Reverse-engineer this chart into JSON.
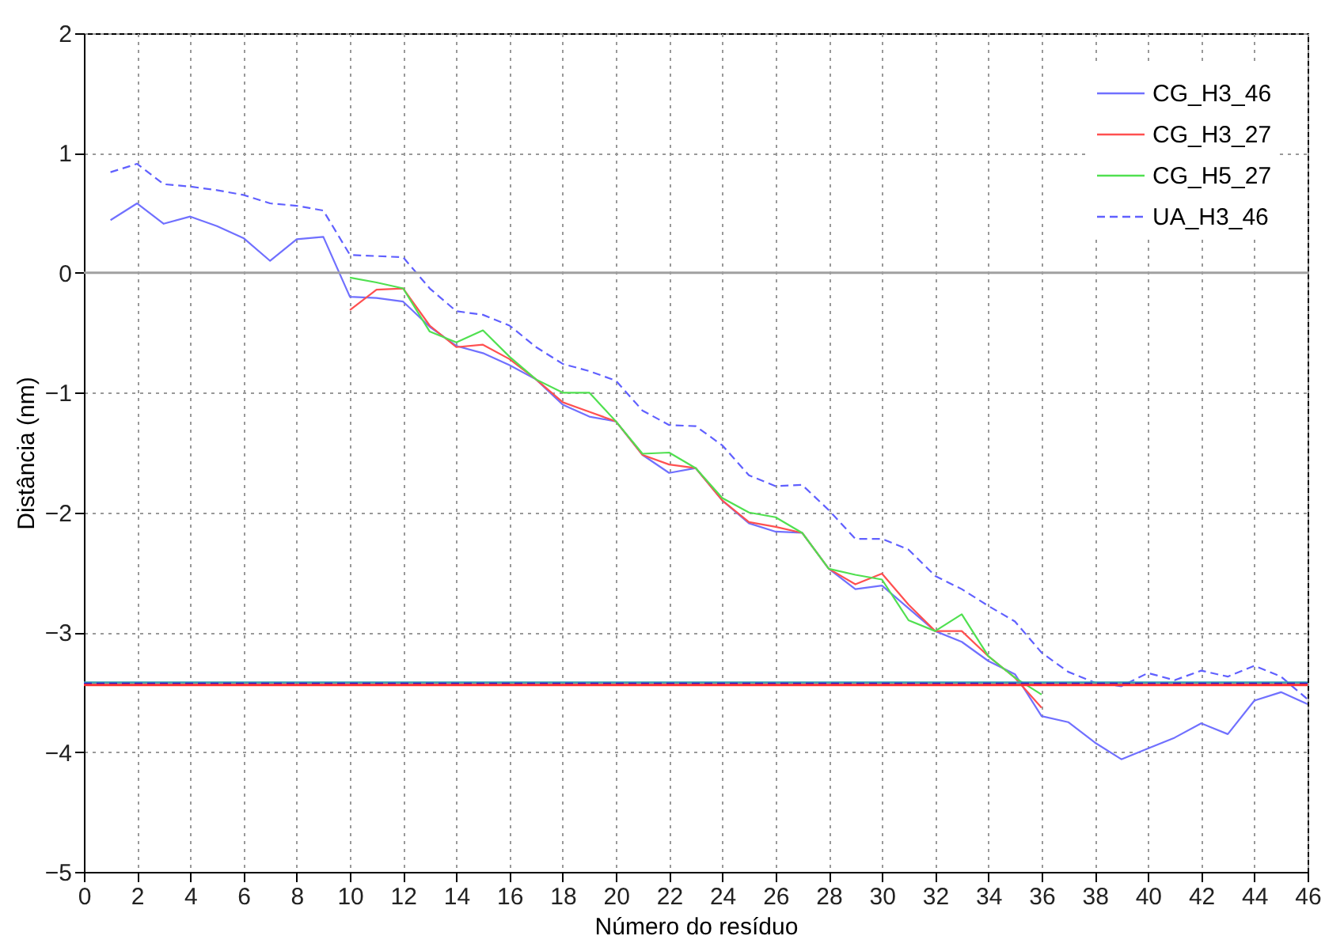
{
  "chart_data": {
    "type": "line",
    "xlabel": "Número do resíduo",
    "ylabel": "Distância (nm)",
    "xlim": [
      0,
      46
    ],
    "ylim": [
      -5,
      2
    ],
    "xticks": [
      0,
      2,
      4,
      6,
      8,
      10,
      12,
      14,
      16,
      18,
      20,
      22,
      24,
      26,
      28,
      30,
      32,
      34,
      36,
      38,
      40,
      42,
      44,
      46
    ],
    "yticks": [
      -5,
      -4,
      -3,
      -2,
      -1,
      0,
      1,
      2
    ],
    "grid": true,
    "legend": "top right",
    "marker": "none",
    "series": [
      {
        "name": "CG_H3_46",
        "color": "#7070ff",
        "line_style": "solid",
        "x": [
          1,
          2,
          3,
          4,
          5,
          6,
          7,
          8,
          9,
          10,
          11,
          12,
          13,
          14,
          15,
          16,
          17,
          18,
          19,
          20,
          21,
          22,
          23,
          24,
          25,
          26,
          27,
          28,
          29,
          30,
          31,
          32,
          33,
          34,
          35,
          36,
          37,
          38,
          39,
          40,
          41,
          42,
          43,
          44,
          45,
          46
        ],
        "values": [
          0.44,
          0.58,
          0.41,
          0.47,
          0.39,
          0.29,
          0.1,
          0.28,
          0.3,
          -0.2,
          -0.21,
          -0.24,
          -0.45,
          -0.61,
          -0.67,
          -0.77,
          -0.89,
          -1.1,
          -1.2,
          -1.24,
          -1.52,
          -1.67,
          -1.63,
          -1.9,
          -2.09,
          -2.16,
          -2.17,
          -2.47,
          -2.64,
          -2.61,
          -2.8,
          -2.99,
          -3.08,
          -3.24,
          -3.35,
          -3.7,
          -3.75,
          -3.92,
          -4.06,
          -3.97,
          -3.88,
          -3.76,
          -3.85,
          -3.57,
          -3.5,
          -3.6
        ]
      },
      {
        "name": "CG_H3_27",
        "color": "#ff5050",
        "line_style": "solid",
        "x": [
          10,
          11,
          12,
          13,
          14,
          15,
          16,
          17,
          18,
          19,
          20,
          21,
          22,
          23,
          24,
          25,
          26,
          27,
          28,
          29,
          30,
          31,
          32,
          33,
          34,
          35,
          36
        ],
        "values": [
          -0.31,
          -0.14,
          -0.13,
          -0.44,
          -0.62,
          -0.6,
          -0.72,
          -0.89,
          -1.08,
          -1.16,
          -1.24,
          -1.52,
          -1.6,
          -1.63,
          -1.9,
          -2.08,
          -2.12,
          -2.17,
          -2.47,
          -2.6,
          -2.51,
          -2.77,
          -2.99,
          -2.99,
          -3.2,
          -3.38,
          -3.63
        ]
      },
      {
        "name": "CG_H5_27",
        "color": "#50e050",
        "line_style": "solid",
        "x": [
          10,
          11,
          12,
          13,
          14,
          15,
          16,
          17,
          18,
          19,
          20,
          21,
          22,
          23,
          24,
          25,
          26,
          27,
          28,
          29,
          30,
          31,
          32,
          33,
          34,
          35,
          36
        ],
        "values": [
          -0.04,
          -0.08,
          -0.13,
          -0.49,
          -0.58,
          -0.48,
          -0.7,
          -0.89,
          -1.0,
          -1.0,
          -1.24,
          -1.51,
          -1.5,
          -1.63,
          -1.88,
          -2.0,
          -2.04,
          -2.17,
          -2.47,
          -2.52,
          -2.56,
          -2.9,
          -2.99,
          -2.85,
          -3.2,
          -3.38,
          -3.52
        ]
      },
      {
        "name": "UA_H3_46",
        "color": "#6060ff",
        "line_style": "dashed",
        "x": [
          1,
          2,
          3,
          4,
          5,
          6,
          7,
          8,
          9,
          10,
          11,
          12,
          13,
          14,
          15,
          16,
          17,
          18,
          19,
          20,
          21,
          22,
          23,
          24,
          25,
          26,
          27,
          28,
          29,
          30,
          31,
          32,
          33,
          34,
          35,
          36,
          37,
          38,
          39,
          40,
          41,
          42,
          43,
          44,
          45,
          46
        ],
        "values": [
          0.84,
          0.91,
          0.74,
          0.72,
          0.69,
          0.65,
          0.58,
          0.56,
          0.52,
          0.15,
          0.14,
          0.13,
          -0.13,
          -0.32,
          -0.35,
          -0.44,
          -0.62,
          -0.76,
          -0.82,
          -0.9,
          -1.15,
          -1.27,
          -1.28,
          -1.44,
          -1.69,
          -1.78,
          -1.77,
          -1.98,
          -2.22,
          -2.22,
          -2.31,
          -2.53,
          -2.64,
          -2.78,
          -2.91,
          -3.17,
          -3.33,
          -3.42,
          -3.45,
          -3.34,
          -3.4,
          -3.32,
          -3.37,
          -3.28,
          -3.37,
          -3.56
        ]
      }
    ],
    "ref_lines": [
      {
        "axis": "y",
        "value": 0,
        "color": "#a0a0a0",
        "line_style": "solid"
      },
      {
        "axis": "y",
        "value": -3.42,
        "color": "#40a0b0",
        "line_style": "solid"
      },
      {
        "axis": "y",
        "value": -3.43,
        "color": "#2020d0",
        "line_style": "dashed"
      },
      {
        "axis": "y",
        "value": -3.44,
        "color": "#ff3030",
        "line_style": "solid"
      }
    ]
  }
}
